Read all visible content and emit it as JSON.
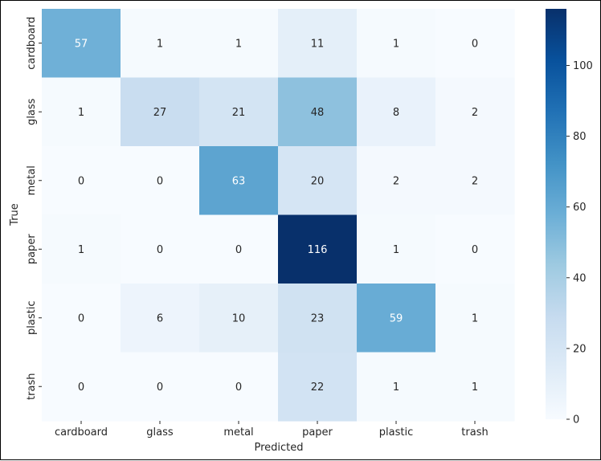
{
  "chart_data": {
    "type": "heatmap",
    "title": "",
    "xlabel": "Predicted",
    "ylabel": "True",
    "x_categories": [
      "cardboard",
      "glass",
      "metal",
      "paper",
      "plastic",
      "trash"
    ],
    "y_categories": [
      "cardboard",
      "glass",
      "metal",
      "paper",
      "plastic",
      "trash"
    ],
    "matrix": [
      [
        57,
        1,
        1,
        11,
        1,
        0
      ],
      [
        1,
        27,
        21,
        48,
        8,
        2
      ],
      [
        0,
        0,
        63,
        20,
        2,
        2
      ],
      [
        1,
        0,
        0,
        116,
        1,
        0
      ],
      [
        0,
        6,
        10,
        23,
        59,
        1
      ],
      [
        0,
        0,
        0,
        22,
        1,
        1
      ]
    ],
    "color_range": [
      0,
      116
    ],
    "colormap": "Blues",
    "colorbar_ticks": [
      0,
      20,
      40,
      60,
      80,
      100
    ]
  }
}
